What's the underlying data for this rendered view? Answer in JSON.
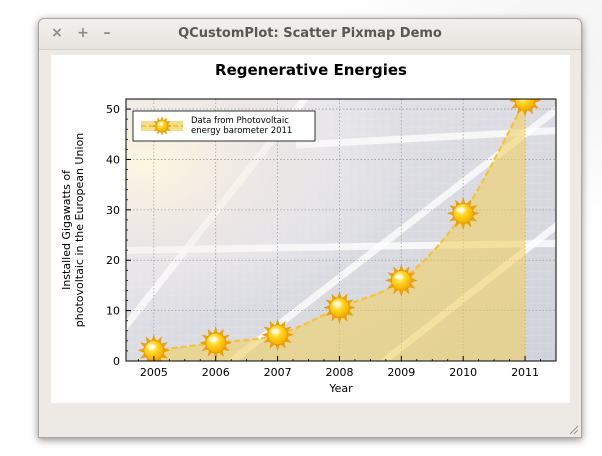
{
  "window": {
    "title": "QCustomPlot: Scatter Pixmap Demo",
    "close_glyph": "×",
    "maximize_glyph": "+",
    "minimize_glyph": "–"
  },
  "icons": {
    "close": "close-icon",
    "maximize": "maximize-icon",
    "minimize": "minimize-icon",
    "point": "sun-icon",
    "resize": "resize-grip-icon"
  },
  "colors": {
    "fill": "#f2cf59",
    "line": "#f5c33b",
    "sun_core": "#ffd21a",
    "sun_ray": "#f0a500",
    "panel_bg": "#dfe1e6"
  },
  "chart_data": {
    "type": "scatter",
    "title": "Regenerative Energies",
    "xlabel": "Year",
    "ylabel_lines": [
      "Installed Gigawatts of",
      "photovoltaic in the European Union"
    ],
    "x": [
      2005,
      2006,
      2007,
      2008,
      2009,
      2010,
      2011
    ],
    "y": [
      2.1,
      3.6,
      5.2,
      10.6,
      16.0,
      29.3,
      51.7
    ],
    "xlim": [
      2004.55,
      2011.5
    ],
    "ylim": [
      0,
      52
    ],
    "x_ticks": [
      2005,
      2006,
      2007,
      2008,
      2009,
      2010,
      2011
    ],
    "x_tick_labels": [
      "2005",
      "2006",
      "2007",
      "2008",
      "2009",
      "2010",
      "2011"
    ],
    "y_ticks": [
      0,
      10,
      20,
      30,
      40,
      50
    ],
    "y_tick_labels": [
      "0",
      "10",
      "20",
      "30",
      "40",
      "50"
    ],
    "grid": true,
    "fill_under_curve": true,
    "legend": {
      "placement": "top-left",
      "entries": [
        {
          "label_lines": [
            "Data from Photovoltaic",
            "energy barometer 2011"
          ]
        }
      ]
    }
  }
}
